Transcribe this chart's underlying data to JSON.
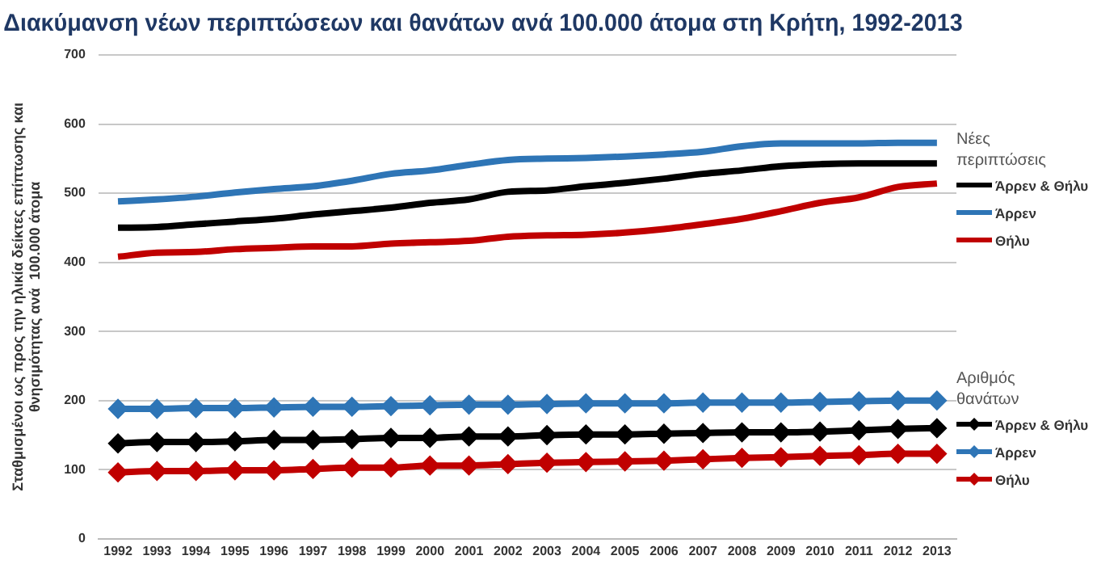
{
  "chart_data": {
    "type": "line",
    "title": "Διακύμανση νέων περιπτώσεων και θανάτων ανά 100.000 άτομα στη Κρήτη, 1992-2013",
    "ylabel": "Σταθμισμένοι ως προς την ηλικία δείκτες επίπτωσης και\nθνησιμότητας ανά  100.000 άτομα",
    "categories": [
      "1992",
      "1993",
      "1994",
      "1995",
      "1996",
      "1997",
      "1998",
      "1999",
      "2000",
      "2001",
      "2002",
      "2003",
      "2004",
      "2005",
      "2006",
      "2007",
      "2008",
      "2009",
      "2010",
      "2011",
      "2012",
      "2013"
    ],
    "series": [
      {
        "name": "Άρρεν & Θήλυ",
        "color": "#000000",
        "marker": "none",
        "values": [
          450,
          451,
          455,
          459,
          463,
          469,
          474,
          479,
          486,
          491,
          502,
          504,
          510,
          515,
          521,
          528,
          533,
          539,
          542,
          543,
          543,
          543
        ]
      },
      {
        "name": "Άρρεν",
        "color": "#2e75b6",
        "marker": "none",
        "values": [
          488,
          491,
          495,
          501,
          506,
          510,
          518,
          528,
          533,
          541,
          548,
          550,
          551,
          553,
          556,
          560,
          568,
          572,
          572,
          572,
          573,
          573
        ]
      },
      {
        "name": "Θήλυ",
        "color": "#c00000",
        "marker": "none",
        "values": [
          408,
          414,
          415,
          419,
          421,
          423,
          423,
          427,
          429,
          431,
          437,
          439,
          440,
          443,
          448,
          455,
          463,
          474,
          486,
          494,
          509,
          514
        ]
      },
      {
        "name": "Άρρεν & Θήλυ",
        "color": "#000000",
        "marker": "diamond",
        "values": [
          138,
          140,
          140,
          141,
          143,
          143,
          144,
          146,
          146,
          148,
          148,
          150,
          151,
          151,
          152,
          153,
          154,
          154,
          155,
          157,
          159,
          160
        ]
      },
      {
        "name": "Άρρεν",
        "color": "#2e75b6",
        "marker": "diamond",
        "values": [
          188,
          188,
          189,
          189,
          190,
          191,
          191,
          192,
          193,
          194,
          194,
          195,
          196,
          196,
          196,
          197,
          197,
          197,
          198,
          199,
          200,
          200
        ]
      },
      {
        "name": "Θήλυ",
        "color": "#c00000",
        "marker": "diamond",
        "values": [
          96,
          98,
          98,
          99,
          99,
          101,
          103,
          103,
          106,
          106,
          108,
          110,
          111,
          112,
          113,
          115,
          117,
          118,
          120,
          121,
          123,
          123
        ]
      }
    ],
    "annotations": [
      "Νέες περιπτώσεις",
      "Αριθμός θανάτων"
    ],
    "ylim": [
      0,
      700
    ],
    "yticks": [
      0,
      100,
      200,
      300,
      400,
      500,
      600,
      700
    ],
    "grid": "y",
    "legend": "right",
    "line_style": "solid"
  }
}
